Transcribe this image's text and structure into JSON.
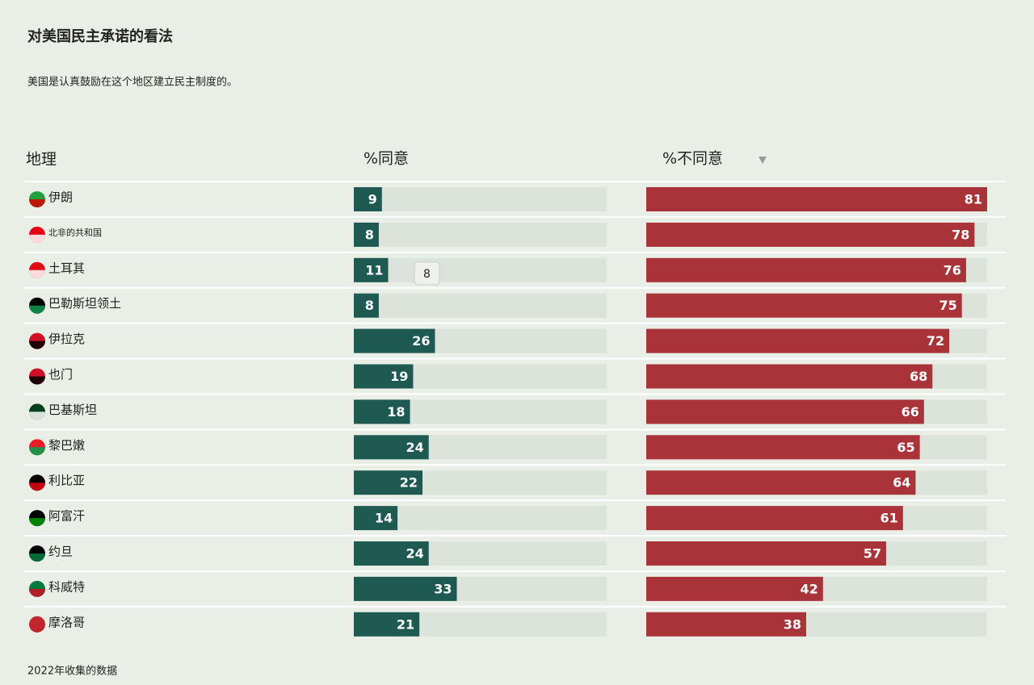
{
  "chart_data": {
    "type": "bar",
    "title": "对美国民主承诺的看法",
    "subtitle": "美国是认真鼓励在这个地区建立民主制度的。",
    "category_label": "地理",
    "categories": [
      "伊朗",
      "北非的共和国",
      "土耳其",
      "巴勒斯坦领土",
      "伊拉克",
      "也门",
      "巴基斯坦",
      "黎巴嫩",
      "利比亚",
      "阿富汗",
      "约旦",
      "科威特",
      "摩洛哥"
    ],
    "series": [
      {
        "name": "%同意",
        "color": "#1f5a52",
        "values": [
          9,
          8,
          11,
          8,
          26,
          19,
          18,
          24,
          22,
          14,
          24,
          33,
          21
        ]
      },
      {
        "name": "%不同意",
        "color": "#a8343a",
        "values": [
          81,
          78,
          76,
          75,
          72,
          68,
          66,
          65,
          64,
          61,
          57,
          42,
          38
        ]
      }
    ],
    "xlim": [
      0,
      81
    ],
    "tooltip": "8",
    "footnote": "2022年收集的数据"
  }
}
